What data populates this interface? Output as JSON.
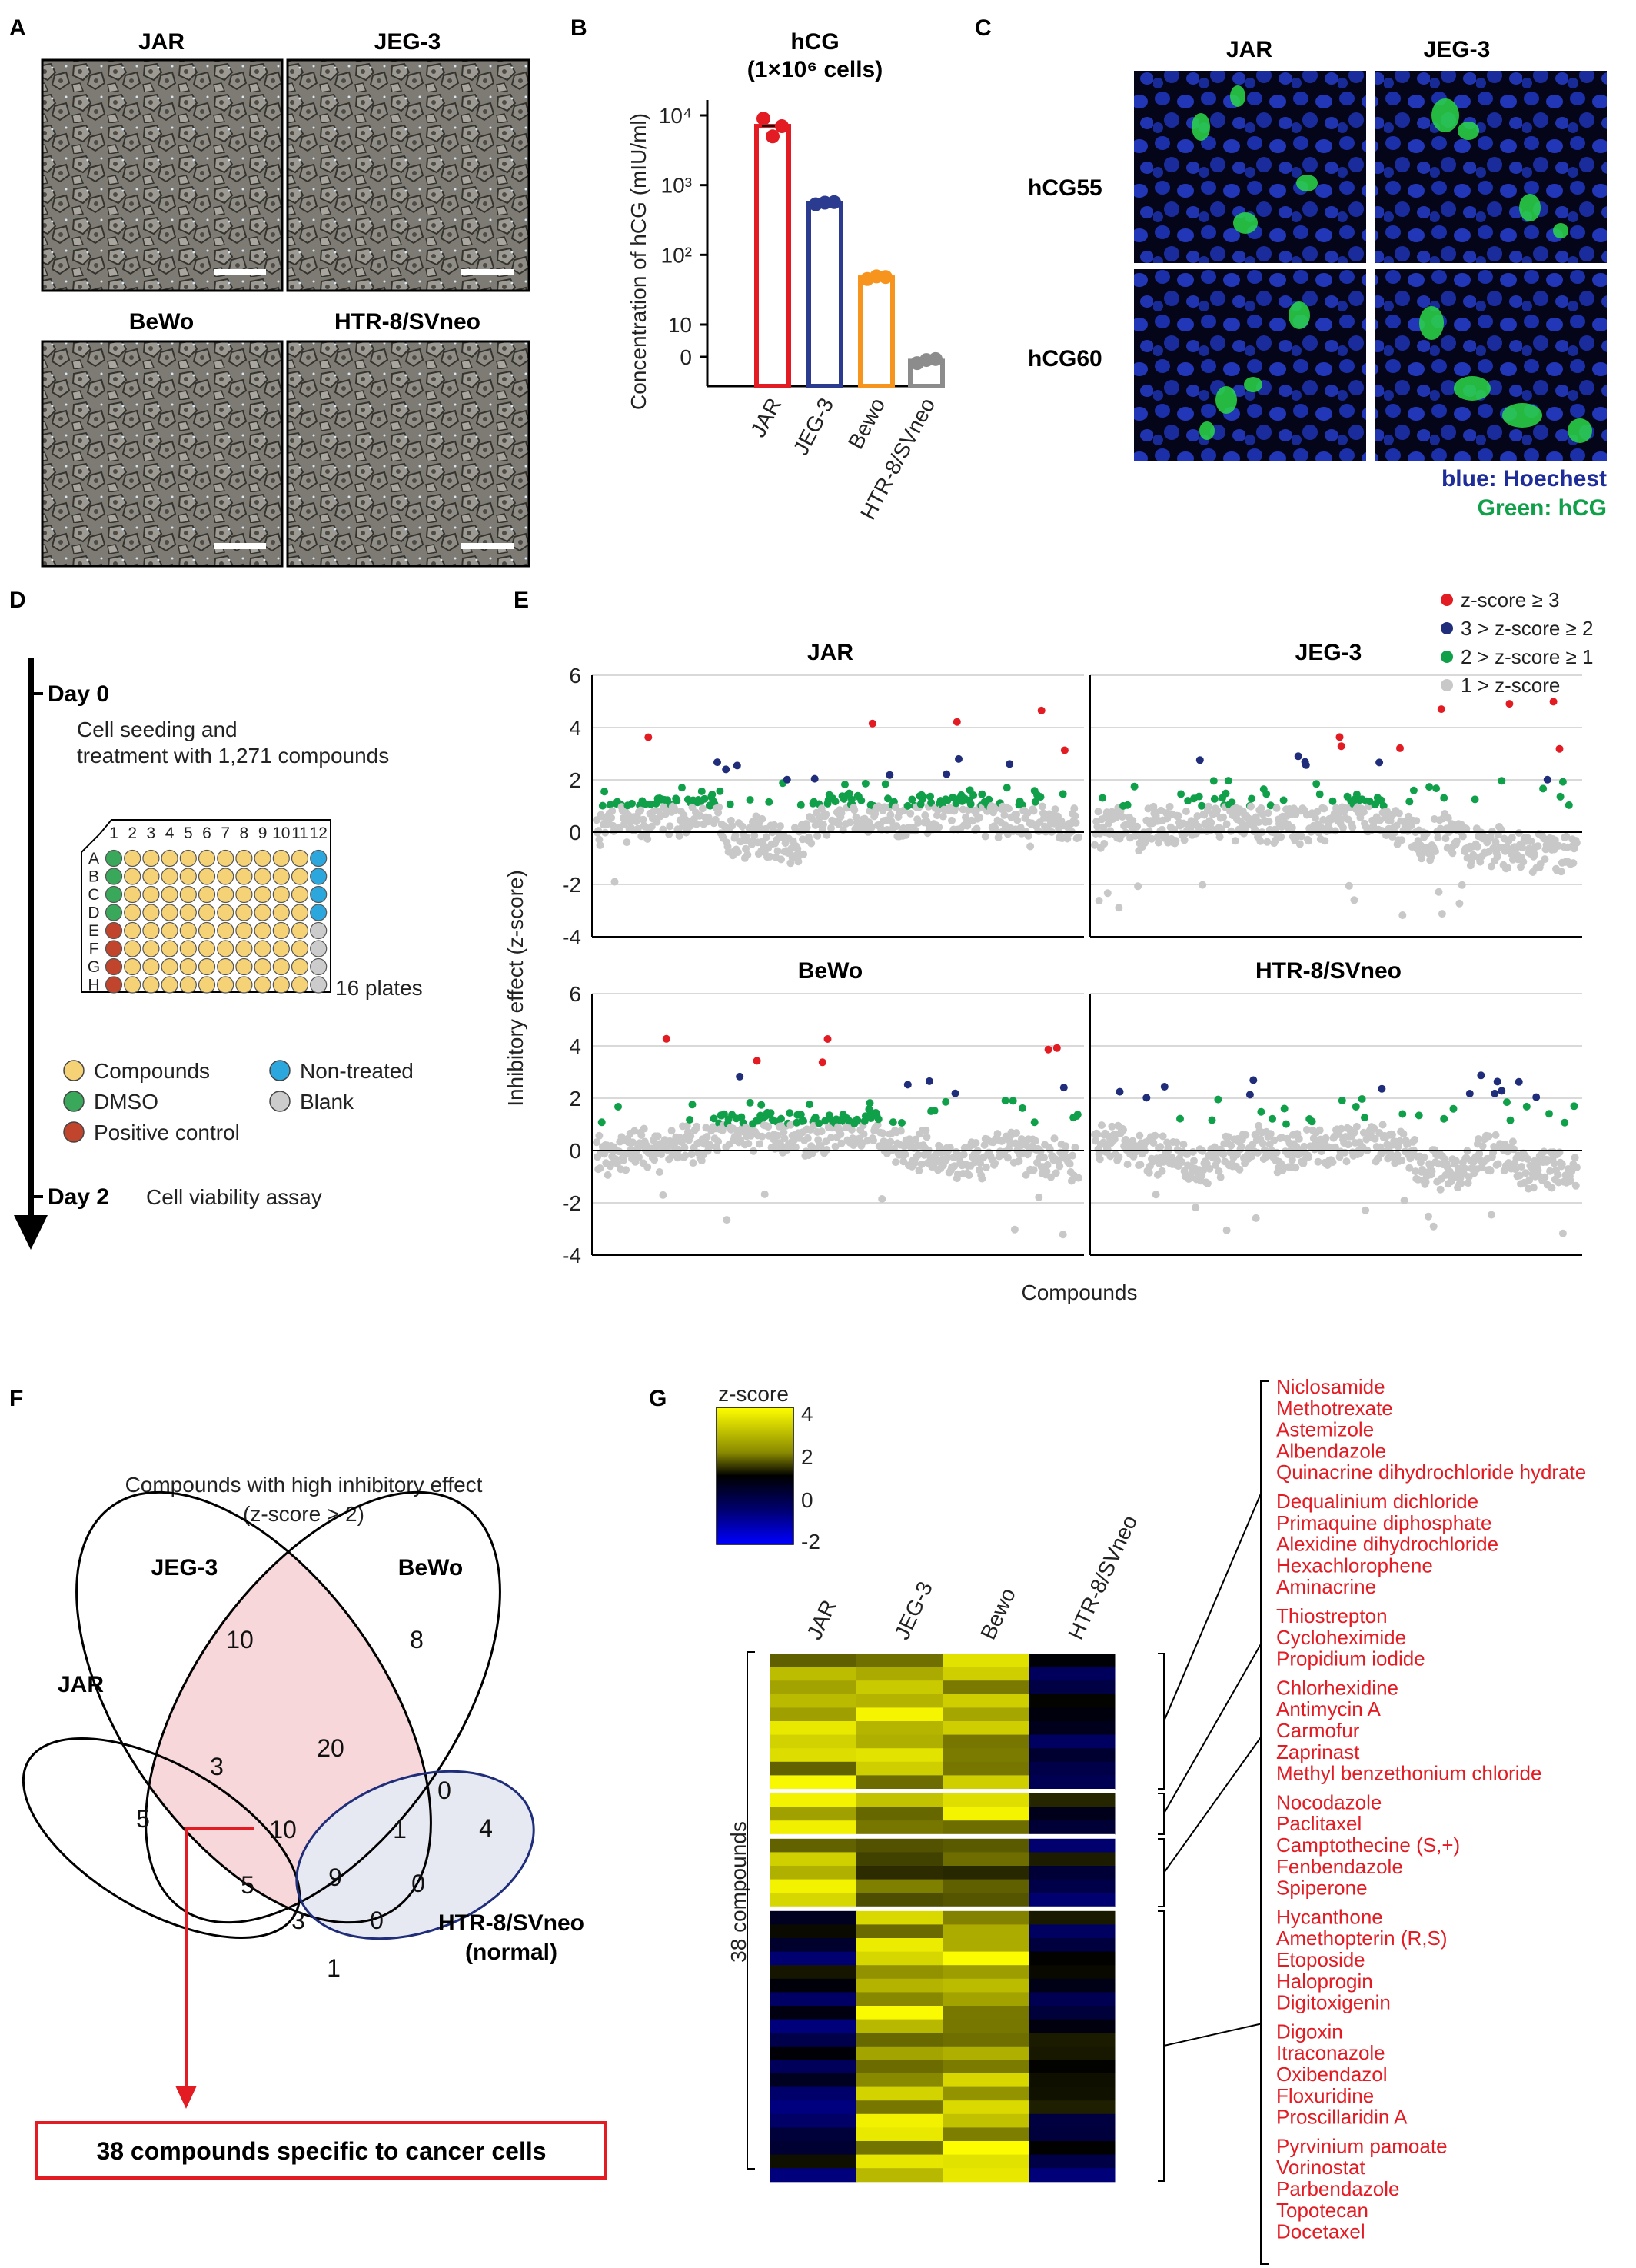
{
  "panel_labels": {
    "A": "A",
    "B": "B",
    "C": "C",
    "D": "D",
    "E": "E",
    "F": "F",
    "G": "G"
  },
  "panelA": {
    "images": [
      {
        "label": "JAR"
      },
      {
        "label": "JEG-3"
      },
      {
        "label": "BeWo"
      },
      {
        "label": "HTR-8/SVneo"
      }
    ]
  },
  "panelC": {
    "col_labels": [
      "JAR",
      "JEG-3"
    ],
    "row_labels": [
      "hCG55",
      "hCG60"
    ],
    "legend_blue": "blue: Hoechest",
    "legend_green": "Green: hCG"
  },
  "panelD": {
    "day0": "Day 0",
    "day0_text1": "Cell seeding and",
    "day0_text2": "treatment with 1,271 compounds",
    "plates": "16 plates",
    "col_numbers": [
      "1",
      "2",
      "3",
      "4",
      "5",
      "6",
      "7",
      "8",
      "9",
      "10",
      "11",
      "12"
    ],
    "row_letters": [
      "A",
      "B",
      "C",
      "D",
      "E",
      "F",
      "G",
      "H"
    ],
    "legend": {
      "compounds": "Compounds",
      "dmso": "DMSO",
      "positive": "Positive control",
      "nontreated": "Non-treated",
      "blank": "Blank"
    },
    "day2": "Day 2",
    "day2_text": "Cell viability assay"
  },
  "panelE": {
    "legend": [
      "z-score ≥ 3",
      "3 > z-score ≥ 2",
      "2 > z-score ≥ 1",
      "1 > z-score"
    ],
    "colors": {
      "red": "#e31b23",
      "navy": "#1f2d7a",
      "green": "#11a04a",
      "gray": "#c8c8c8"
    }
  },
  "panelF": {
    "title1": "Compounds with high inhibitory effect",
    "title2": "(z-score > 2)",
    "set_labels": {
      "jeg3": "JEG-3",
      "bewo": "BeWo",
      "jar": "JAR",
      "htr1": "HTR-8/SVneo",
      "htr2": "(normal)"
    },
    "numbers": {
      "jeg3_only": "10",
      "bewo_only": "8",
      "jar_only": "5",
      "jar_jeg3": "3",
      "jeg3_bewo": "20",
      "jeg3_bewo_htr": "0",
      "htr_only": "4",
      "jar_jeg3_bewo": "10",
      "jeg3_bewo_htr_all": "1",
      "jar_bewo": "5",
      "all_four": "9",
      "bewo_htr": "0",
      "jar_jeg3_htr": "3",
      "jar_bewo_htr": "0",
      "jar_htr": "1"
    },
    "box_text": "38 compounds specific to cancer cells"
  },
  "panelG": {
    "colorbar_title": "z-score",
    "colorbar_ticks": [
      "4",
      "2",
      "0",
      "-2"
    ],
    "col_labels": [
      "JAR",
      "JEG-3",
      "Bewo",
      "HTR-8/SVneo"
    ],
    "row_label": "38 compounds",
    "groups": [
      [
        "Niclosamide",
        "Methotrexate",
        "Astemizole",
        "Albendazole",
        "Quinacrine dihydrochloride hydrate",
        "Dequalinium dichloride",
        "Primaquine diphosphate",
        "Alexidine dihydrochloride",
        "Hexachlorophene",
        "Aminacrine"
      ],
      [
        "Thiostrepton",
        "Cycloheximide",
        "Propidium iodide"
      ],
      [
        "Chlorhexidine",
        "Antimycin A",
        "Carmofur",
        "Zaprinast",
        "Methyl benzethonium chloride"
      ],
      [
        "Nocodazole",
        "Paclitaxel",
        "Camptothecine (S,+)",
        "Fenbendazole",
        "Spiperone",
        "Hycanthone",
        "Amethopterin (R,S)",
        "Etoposide",
        "Haloprogin",
        "Digitoxigenin",
        "Digoxin",
        "Itraconazole",
        "Oxibendazol",
        "Floxuridine",
        "Proscillaridin A",
        "Pyrvinium pamoate",
        "Vorinostat",
        "Parbendazole",
        "Topotecan",
        "Docetaxel"
      ]
    ]
  },
  "chart_data": [
    {
      "type": "bar",
      "title": "hCG",
      "subtitle": "(1×10⁶ cells)",
      "ylabel": "Concentration of hCG (mIU/ml)",
      "categories": [
        "JAR",
        "JEG-3",
        "Bewo",
        "HTR-8/SVneo"
      ],
      "values": [
        7000,
        550,
        47,
        3
      ],
      "points": [
        [
          9000,
          5000,
          7000
        ],
        [
          530,
          560,
          570
        ],
        [
          45,
          49,
          48
        ],
        [
          2.8,
          3.1,
          3.2
        ]
      ],
      "colors": [
        "#e31b23",
        "#2b3b8f",
        "#f7941d",
        "#8c8c8c"
      ],
      "yscale": "log",
      "yticks": [
        "0",
        "10",
        "10²",
        "10³",
        "10⁴"
      ]
    },
    {
      "type": "scatter",
      "panels": [
        "JAR",
        "JEG-3",
        "BeWo",
        "HTR-8/SVneo"
      ],
      "xlabel": "Compounds",
      "ylabel": "Inhibitory effect (z-score)",
      "n_compounds": 1271,
      "ylim": [
        -4,
        6
      ],
      "yticks": [
        "6",
        "4",
        "2",
        "0",
        "-2",
        "-4"
      ],
      "series": [
        "z-score ≥ 3",
        "3 > z-score ≥ 2",
        "2 > z-score ≥ 1",
        "1 > z-score"
      ],
      "grid": true
    },
    {
      "type": "heatmap",
      "columns": [
        "JAR",
        "JEG-3",
        "Bewo",
        "HTR-8/SVneo"
      ],
      "n_rows": 38,
      "zlim": [
        -2,
        4
      ]
    }
  ]
}
